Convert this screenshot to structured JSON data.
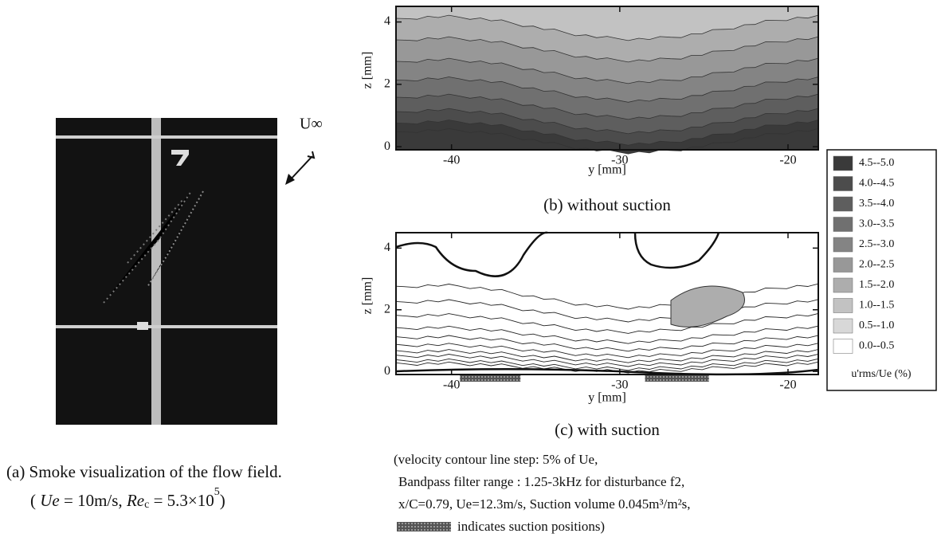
{
  "panel_a": {
    "flow_label": "U∞",
    "caption": "(a)  Smoke visualization of the flow field.",
    "conditions": [
      "( ",
      "Ue",
      " = 10m/s, ",
      "Re",
      "c",
      " = 5.3×10",
      "5",
      ")"
    ]
  },
  "chart_data": [
    {
      "type": "contour",
      "caption": "(b) without suction",
      "xlabel": "y [mm]",
      "ylabel": "z [mm]",
      "xlim": [
        -43.3,
        -18.2
      ],
      "ylim": [
        -0.1,
        4.5
      ],
      "xticks": [
        -40,
        -30,
        -20
      ],
      "yticks": [
        0,
        2,
        4
      ]
    },
    {
      "type": "contour",
      "caption": "(c) with suction",
      "xlabel": "y [mm]",
      "ylabel": "z [mm]",
      "xlim": [
        -43.3,
        -18.2
      ],
      "ylim": [
        -0.1,
        4.5
      ],
      "xticks": [
        -40,
        -30,
        -20
      ],
      "yticks": [
        0,
        2,
        4
      ],
      "suction_positions": [
        [
          -39.5,
          -35.9
        ],
        [
          -28.5,
          -24.7
        ]
      ]
    }
  ],
  "legend": {
    "title": "u'rms/Ue (%)",
    "entries": [
      {
        "label": "4.5--5.0",
        "color": "#3a3a3a"
      },
      {
        "label": "4.0--4.5",
        "color": "#4c4c4c"
      },
      {
        "label": "3.5--4.0",
        "color": "#5e5e5e"
      },
      {
        "label": "3.0--3.5",
        "color": "#707070"
      },
      {
        "label": "2.5--3.0",
        "color": "#848484"
      },
      {
        "label": "2.0--2.5",
        "color": "#989898"
      },
      {
        "label": "1.5--2.0",
        "color": "#adadad"
      },
      {
        "label": "1.0--1.5",
        "color": "#c2c2c2"
      },
      {
        "label": "0.5--1.0",
        "color": "#d8d8d8"
      },
      {
        "label": "0.0--0.5",
        "color": "#ffffff"
      }
    ]
  },
  "notes": [
    "(velocity contour line step: 5% of Ue,",
    "Bandpass filter range : 1.25-3kHz for disturbance f2,",
    "x/C=0.79,  Ue=12.3m/s,   Suction volume 0.045m³/m²s,",
    "indicates suction positions)"
  ]
}
